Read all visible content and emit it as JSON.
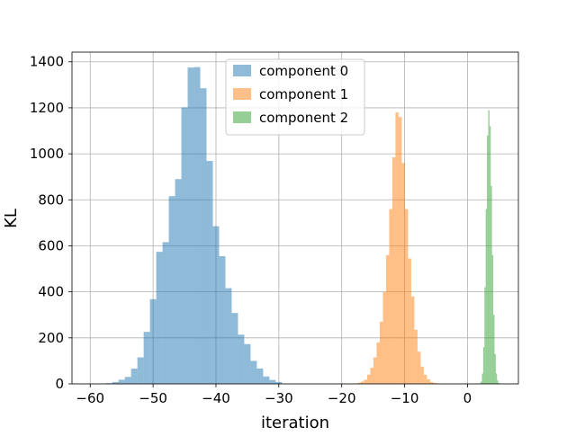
{
  "chart_data": {
    "type": "histogram",
    "xlabel": "iteration",
    "ylabel": "KL",
    "xlim": [
      -62.9,
      8.1
    ],
    "ylim": [
      0,
      1442
    ],
    "x_ticks": [
      -60,
      -50,
      -40,
      -30,
      -20,
      -10,
      0
    ],
    "y_ticks": [
      0,
      200,
      400,
      600,
      800,
      1000,
      1200,
      1400
    ],
    "grid": true,
    "legend_position": "top-center",
    "alpha": 0.5,
    "series": [
      {
        "name": "component 0",
        "color": "#1f77b4",
        "bin_start": -57.5,
        "bin_width": 1.0,
        "counts": [
          3,
          8,
          18,
          30,
          66,
          115,
          226,
          368,
          574,
          616,
          816,
          890,
          1202,
          1375,
          1377,
          1285,
          969,
          685,
          555,
          416,
          308,
          214,
          173,
          100,
          67,
          32,
          17,
          8
        ]
      },
      {
        "name": "component 1",
        "color": "#ff7f0e",
        "bin_start": -17.95,
        "bin_width": 0.5,
        "counts": [
          2,
          5,
          10,
          18,
          40,
          70,
          115,
          180,
          270,
          400,
          560,
          760,
          985,
          1180,
          1160,
          960,
          760,
          545,
          380,
          235,
          140,
          75,
          40,
          20,
          8,
          4
        ]
      },
      {
        "name": "component 2",
        "color": "#2ca02c",
        "bin_start": 1.9,
        "bin_width": 0.2,
        "counts": [
          2,
          10,
          45,
          160,
          420,
          760,
          1080,
          1190,
          1120,
          860,
          560,
          300,
          130,
          45,
          15,
          4
        ]
      }
    ]
  }
}
